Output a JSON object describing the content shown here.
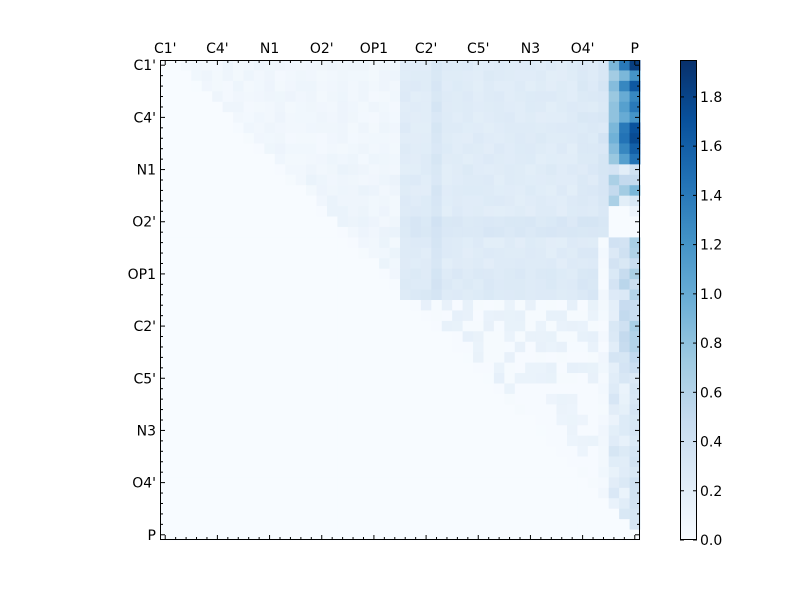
{
  "chart_data": {
    "type": "heatmap",
    "title": "",
    "xlabel": "",
    "ylabel": "",
    "tick_labels": [
      "C1'",
      "C4'",
      "N1",
      "O2'",
      "OP1",
      "C2'",
      "C5'",
      "N3",
      "O4'",
      "P"
    ],
    "tick_positions": [
      0,
      5,
      10,
      15,
      20,
      25,
      30,
      35,
      40,
      45
    ],
    "x_ticks_position": "top",
    "y_ticks_position": "left",
    "n_rows": 46,
    "n_cols": 46,
    "colormap": "Blues",
    "colorbar": {
      "vmin": 0.0,
      "vmax": 1.95,
      "ticks": [
        0.0,
        0.2,
        0.4,
        0.6,
        0.8,
        1.0,
        1.2,
        1.4,
        1.6,
        1.8
      ],
      "tick_labels": [
        "0.0",
        "0.2",
        "0.4",
        "0.6",
        "0.8",
        "1.0",
        "1.2",
        "1.4",
        "1.6",
        "1.8"
      ]
    },
    "col_values": {
      "P": [
        1.85,
        1.2,
        1.65,
        1.3,
        1.4,
        1.2,
        1.7,
        1.75,
        1.6,
        1.45,
        0.4,
        0.5,
        0.9,
        0.3,
        0.1,
        0.0,
        0.0
      ],
      "O4": [
        1.4,
        0.9,
        1.3,
        1.0,
        1.1,
        1.0,
        1.4,
        1.45,
        1.3,
        1.1,
        0.2,
        0.5,
        0.7,
        0.2,
        0.0,
        0.0,
        0.0
      ],
      "C3": [
        0.9,
        0.7,
        0.85,
        0.75,
        0.8,
        0.8,
        0.9,
        0.95,
        0.85,
        0.75,
        0.35,
        0.65,
        0.5,
        0.65,
        0.0,
        0.0,
        0.0
      ]
    },
    "notes": []
  },
  "colors": {
    "low": "#f7fbff",
    "high": "#08306b",
    "frame": "#000000"
  }
}
